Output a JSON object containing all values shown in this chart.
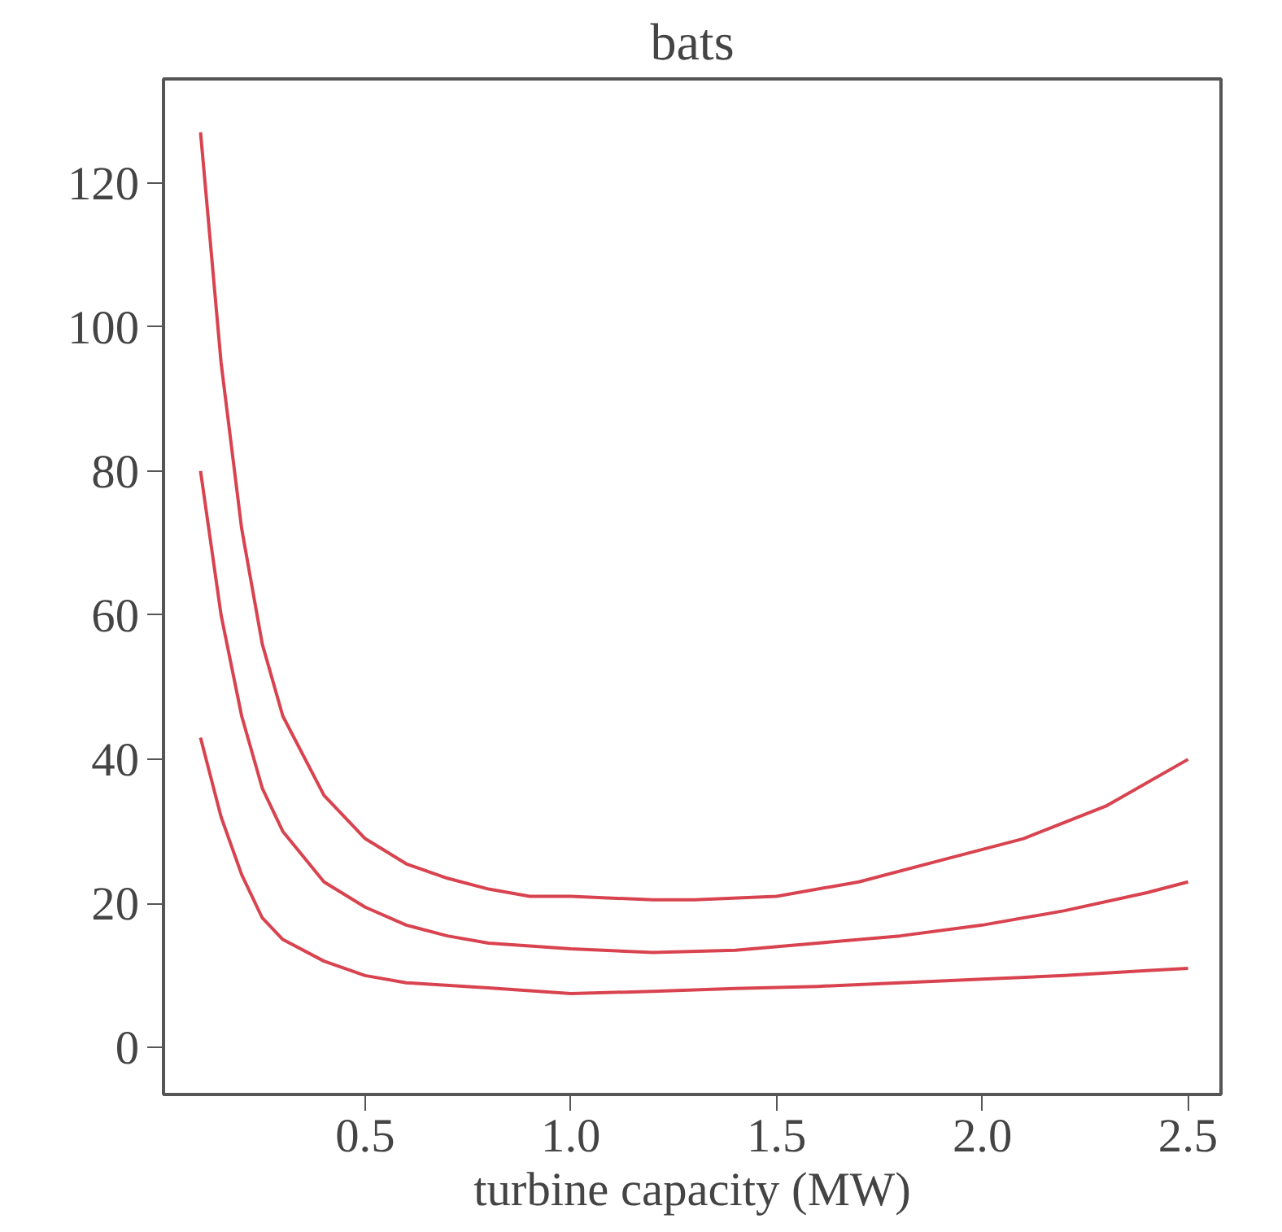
{
  "chart_data": {
    "type": "line",
    "title": "bats",
    "xlabel": "turbine capacity (MW)",
    "xlim": [
      0.01,
      2.58
    ],
    "ylim": [
      -6.5,
      134.4
    ],
    "xticks": [
      0.5,
      {
        "value": 1,
        "label": "1.0"
      },
      1.5,
      {
        "value": 2,
        "label": "2.0"
      },
      2.5
    ],
    "yticks": [
      0,
      20,
      40,
      60,
      80,
      100,
      120
    ],
    "grid": false,
    "marker": "none",
    "line_style": "solid",
    "series": [
      {
        "color": "#d8434f",
        "x": [
          0.1,
          0.15,
          0.2,
          0.25,
          0.3,
          0.4,
          0.5,
          0.6,
          0.7,
          0.8,
          0.9,
          1.0,
          1.2,
          1.3,
          1.5,
          1.7,
          1.9,
          2.1,
          2.3,
          2.5
        ],
        "values": [
          127,
          95,
          72,
          56,
          46,
          35,
          29,
          25.5,
          23.5,
          22,
          21,
          21,
          20.5,
          20.5,
          21,
          23,
          26,
          29,
          33.5,
          40
        ]
      },
      {
        "color": "#d8434f",
        "x": [
          0.1,
          0.15,
          0.2,
          0.25,
          0.3,
          0.4,
          0.5,
          0.6,
          0.7,
          0.8,
          1.0,
          1.2,
          1.4,
          1.6,
          1.8,
          2.0,
          2.2,
          2.4,
          2.5
        ],
        "values": [
          80,
          60,
          46,
          36,
          30,
          23,
          19.5,
          17,
          15.5,
          14.5,
          13.7,
          13.2,
          13.5,
          14.5,
          15.5,
          17,
          19,
          21.5,
          23
        ]
      },
      {
        "color": "#d8434f",
        "x": [
          0.1,
          0.15,
          0.2,
          0.25,
          0.3,
          0.4,
          0.5,
          0.6,
          0.8,
          1.0,
          1.2,
          1.4,
          1.6,
          1.8,
          2.0,
          2.2,
          2.4,
          2.5
        ],
        "values": [
          43,
          32,
          24,
          18,
          15,
          12,
          10,
          9,
          8.3,
          7.5,
          7.8,
          8.2,
          8.5,
          9,
          9.5,
          10,
          10.7,
          11
        ]
      }
    ]
  }
}
